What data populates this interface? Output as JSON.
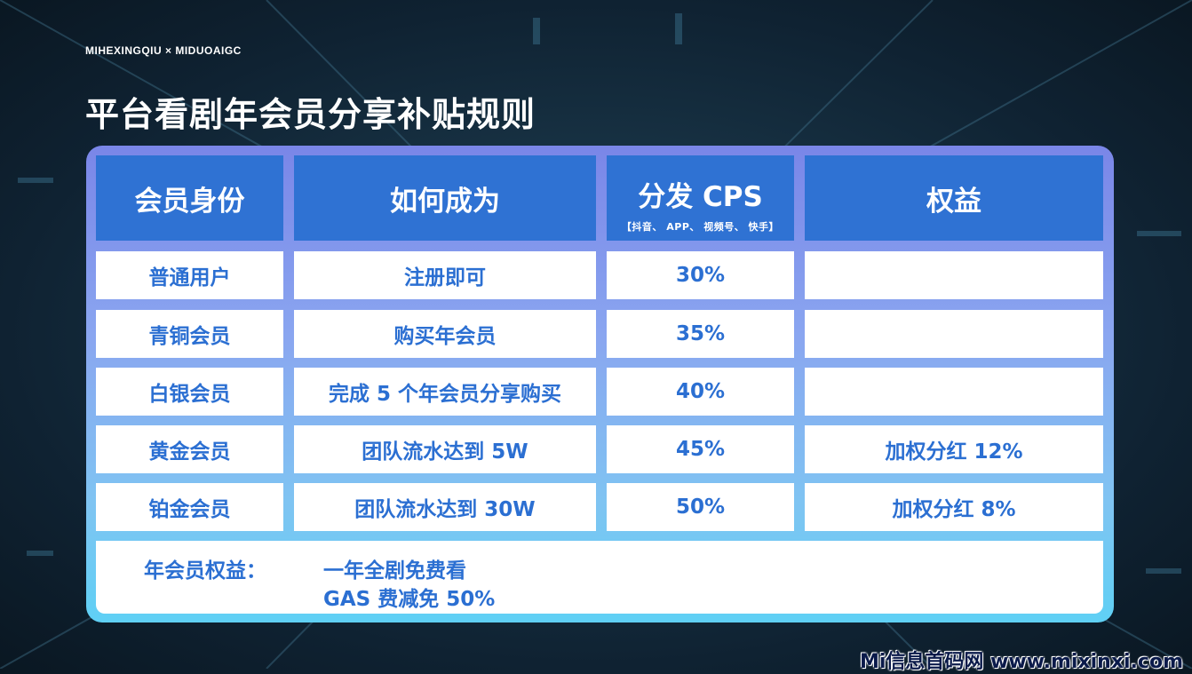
{
  "brand": "MIHEXINGQIU × MIDUOAIGC",
  "title": "平台看剧年会员分享补贴规则",
  "table": {
    "headers": [
      "会员身份",
      "如何成为",
      "分发 CPS",
      "权益"
    ],
    "cps_sub": "【抖音、 APP、 视频号、 快手】",
    "rows": [
      {
        "level": "普通用户",
        "how": "注册即可",
        "cps": "30%",
        "benefit": ""
      },
      {
        "level": "青铜会员",
        "how": "购买年会员",
        "cps": "35%",
        "benefit": ""
      },
      {
        "level": "白银会员",
        "how": "完成 5 个年会员分享购买",
        "cps": "40%",
        "benefit": ""
      },
      {
        "level": "黄金会员",
        "how": "团队流水达到 5W",
        "cps": "45%",
        "benefit": "加权分红 12%"
      },
      {
        "level": "铂金会员",
        "how": "团队流水达到 30W",
        "cps": "50%",
        "benefit": "加权分红 8%"
      }
    ]
  },
  "footer": {
    "label": "年会员权益：",
    "line1": "一年全剧免费看",
    "line2": "GAS 费减免 50%"
  },
  "watermark": "Mi信息首码网 www.mixinxi.com",
  "colors": {
    "header_bg": "#2f72d3",
    "text_blue": "#2b6fd2",
    "background": "#0f2232"
  }
}
